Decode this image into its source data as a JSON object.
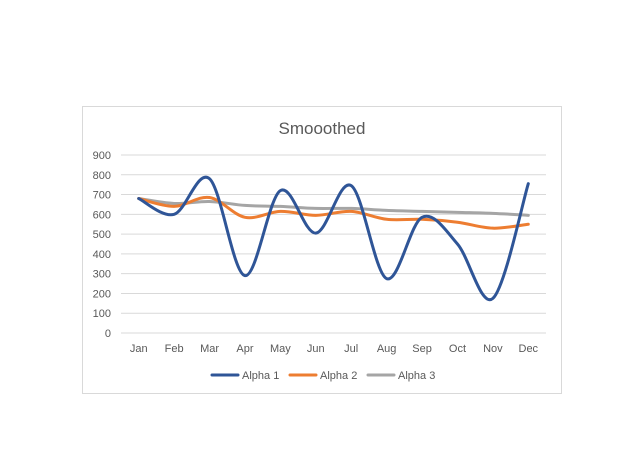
{
  "chart_data": {
    "type": "line",
    "smoothed": true,
    "title": "Smooothed",
    "categories": [
      "Jan",
      "Feb",
      "Mar",
      "Apr",
      "May",
      "Jun",
      "Jul",
      "Aug",
      "Sep",
      "Oct",
      "Nov",
      "Dec"
    ],
    "ylim": [
      0,
      900
    ],
    "yticks": [
      0,
      100,
      200,
      300,
      400,
      500,
      600,
      700,
      800,
      900
    ],
    "grid": true,
    "legend_position": "bottom",
    "series": [
      {
        "name": "Alpha 1",
        "color": "#2f5597",
        "values": [
          680,
          600,
          780,
          290,
          720,
          505,
          745,
          275,
          585,
          450,
          175,
          755
        ]
      },
      {
        "name": "Alpha 2",
        "color": "#ed7d31",
        "values": [
          680,
          640,
          685,
          585,
          615,
          595,
          615,
          575,
          575,
          560,
          530,
          550
        ]
      },
      {
        "name": "Alpha 3",
        "color": "#a5a5a5",
        "values": [
          680,
          655,
          665,
          645,
          640,
          630,
          630,
          620,
          615,
          610,
          605,
          595
        ]
      }
    ]
  }
}
